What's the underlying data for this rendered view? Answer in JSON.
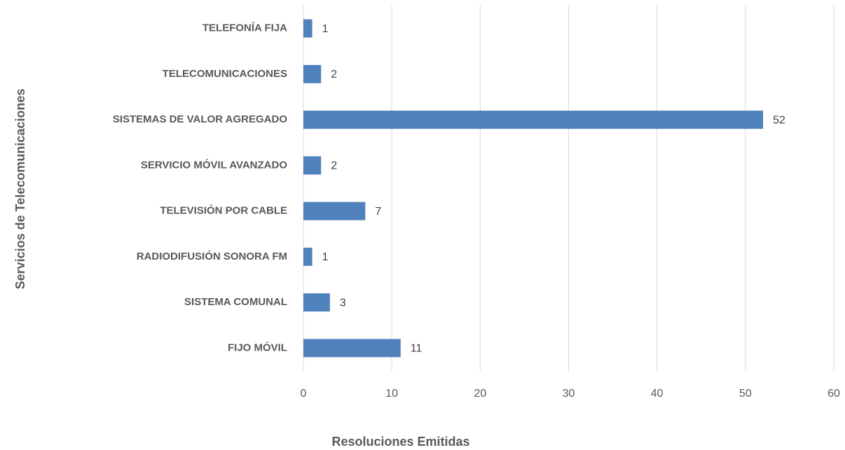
{
  "chart_data": {
    "type": "bar",
    "orientation": "horizontal",
    "x_label": "Resoluciones Emitidas",
    "y_label": "Servicios de Telecomunicaciones",
    "categories": [
      "TELEFONÍA FIJA",
      "TELECOMUNICACIONES",
      "SISTEMAS DE VALOR AGREGADO",
      "SERVICIO MÓVIL AVANZADO",
      "TELEVISIÓN POR CABLE",
      "RADIODIFUSIÓN SONORA FM",
      "SISTEMA COMUNAL",
      "FIJO MÓVIL"
    ],
    "values": [
      1,
      2,
      52,
      2,
      7,
      1,
      3,
      11
    ],
    "color": "#4f81bd",
    "xlim": [
      0,
      60
    ],
    "xticks": [
      0,
      10,
      20,
      30,
      40,
      50,
      60
    ],
    "grid": true
  }
}
